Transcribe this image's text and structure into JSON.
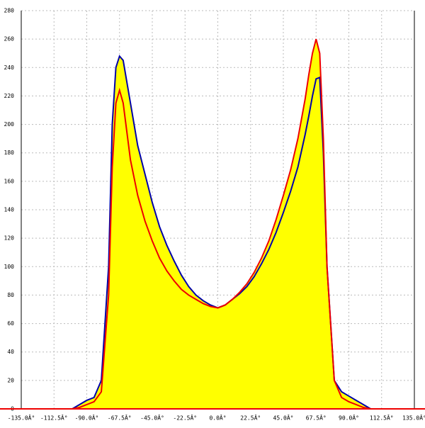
{
  "chart_data": {
    "type": "line",
    "fill_color": "#ffff00",
    "grid": true,
    "x": [
      -100,
      -95,
      -90,
      -85,
      -80,
      -75,
      -72.5,
      -70,
      -67.5,
      -65,
      -62.5,
      -60,
      -55,
      -50,
      -45,
      -40,
      -35,
      -30,
      -25,
      -20,
      -15,
      -10,
      -5,
      0,
      5,
      10,
      15,
      20,
      25,
      30,
      35,
      40,
      45,
      50,
      55,
      60,
      62.5,
      65,
      67.5,
      70,
      72.5,
      75,
      80,
      85,
      90,
      95,
      100,
      105
    ],
    "series": [
      {
        "color": "#0000aa",
        "values": [
          0,
          3,
          6,
          8,
          20,
          100,
          200,
          240,
          248,
          245,
          230,
          215,
          185,
          165,
          145,
          128,
          115,
          104,
          94,
          86,
          80,
          76,
          73,
          71,
          73,
          77,
          81,
          86,
          93,
          102,
          112,
          124,
          138,
          153,
          170,
          193,
          206,
          220,
          232,
          233,
          180,
          100,
          20,
          12,
          9,
          6,
          3,
          0
        ]
      },
      {
        "color": "#ee0000",
        "values": [
          0,
          1,
          3,
          5,
          12,
          80,
          170,
          215,
          224,
          215,
          195,
          175,
          150,
          132,
          118,
          106,
          97,
          90,
          84,
          80,
          77,
          74,
          72,
          71,
          73,
          77,
          82,
          88,
          96,
          106,
          118,
          133,
          150,
          168,
          190,
          218,
          235,
          250,
          260,
          250,
          190,
          100,
          20,
          8,
          5,
          3,
          1,
          0
        ]
      }
    ],
    "xlim": [
      -135,
      135
    ],
    "xticks": [
      {
        "value": -135,
        "label": "-135.0Â°"
      },
      {
        "value": -112.5,
        "label": "-112.5Â°"
      },
      {
        "value": -90,
        "label": "-90.0Â°"
      },
      {
        "value": -67.5,
        "label": "-67.5Â°"
      },
      {
        "value": -45,
        "label": "-45.0Â°"
      },
      {
        "value": -22.5,
        "label": "-22.5Â°"
      },
      {
        "value": 0,
        "label": "0.0Â°"
      },
      {
        "value": 22.5,
        "label": "22.5Â°"
      },
      {
        "value": 45,
        "label": "45.0Â°"
      },
      {
        "value": 67.5,
        "label": "67.5Â°"
      },
      {
        "value": 90,
        "label": "90.0Â°"
      },
      {
        "value": 112.5,
        "label": "112.5Â°"
      },
      {
        "value": 135,
        "label": "135.0Â°"
      }
    ],
    "ylim": [
      0,
      280
    ],
    "yticks": [
      0,
      20,
      40,
      60,
      80,
      100,
      120,
      140,
      160,
      180,
      200,
      220,
      240,
      260,
      280
    ]
  }
}
